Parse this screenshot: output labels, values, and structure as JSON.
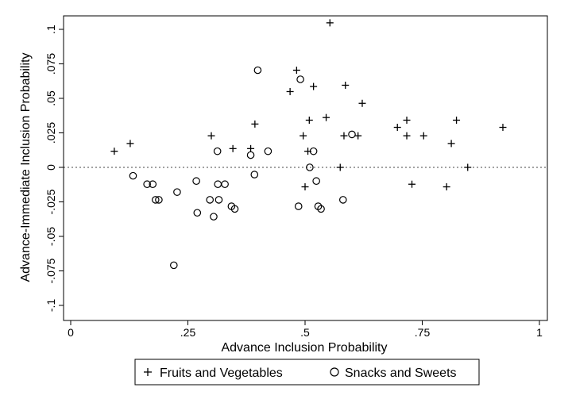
{
  "chart_data": {
    "type": "scatter",
    "xlabel": "Advance Inclusion Probability",
    "ylabel": "Advance-Immediate Inclusion Probability",
    "xlim": [
      0,
      1
    ],
    "ylim": [
      -0.1,
      0.1
    ],
    "x_ticks": [
      {
        "value": 0,
        "label": "0"
      },
      {
        "value": 0.25,
        "label": ".25"
      },
      {
        "value": 0.5,
        "label": ".5"
      },
      {
        "value": 0.75,
        "label": ".75"
      },
      {
        "value": 1,
        "label": "1"
      }
    ],
    "y_ticks": [
      {
        "value": 0.1,
        "label": ".1"
      },
      {
        "value": 0.075,
        "label": ".075"
      },
      {
        "value": 0.05,
        "label": ".05"
      },
      {
        "value": 0.025,
        "label": ".025"
      },
      {
        "value": 0,
        "label": "0"
      },
      {
        "value": -0.025,
        "label": "-.025"
      },
      {
        "value": -0.05,
        "label": "-.05"
      },
      {
        "value": -0.075,
        "label": "-.075"
      },
      {
        "value": -0.1,
        "label": "-.1"
      }
    ],
    "reference_line": {
      "y": 0,
      "style": "dotted"
    },
    "grid": false,
    "legend_position": "bottom",
    "series": [
      {
        "name": "Fruits and Vegetables",
        "marker": "plus",
        "points": [
          {
            "x": 0.093,
            "y": 0.0117
          },
          {
            "x": 0.127,
            "y": 0.0173
          },
          {
            "x": 0.3,
            "y": 0.0229
          },
          {
            "x": 0.346,
            "y": 0.0136
          },
          {
            "x": 0.384,
            "y": 0.0136
          },
          {
            "x": 0.393,
            "y": 0.0314
          },
          {
            "x": 0.468,
            "y": 0.0549
          },
          {
            "x": 0.482,
            "y": 0.0704
          },
          {
            "x": 0.496,
            "y": 0.0229
          },
          {
            "x": 0.5,
            "y": -0.0141
          },
          {
            "x": 0.506,
            "y": 0.0117
          },
          {
            "x": 0.509,
            "y": 0.0342
          },
          {
            "x": 0.518,
            "y": 0.0586
          },
          {
            "x": 0.545,
            "y": 0.0361
          },
          {
            "x": 0.553,
            "y": 0.1047
          },
          {
            "x": 0.575,
            "y": 0.0
          },
          {
            "x": 0.583,
            "y": 0.0229
          },
          {
            "x": 0.586,
            "y": 0.0595
          },
          {
            "x": 0.613,
            "y": 0.0229
          },
          {
            "x": 0.622,
            "y": 0.0464
          },
          {
            "x": 0.697,
            "y": 0.029
          },
          {
            "x": 0.717,
            "y": 0.0342
          },
          {
            "x": 0.717,
            "y": 0.0229
          },
          {
            "x": 0.728,
            "y": -0.0122
          },
          {
            "x": 0.753,
            "y": 0.0229
          },
          {
            "x": 0.802,
            "y": -0.0141
          },
          {
            "x": 0.812,
            "y": 0.0173
          },
          {
            "x": 0.823,
            "y": 0.0342
          },
          {
            "x": 0.847,
            "y": 0.0
          },
          {
            "x": 0.922,
            "y": 0.029
          }
        ]
      },
      {
        "name": "Snacks and Sweets",
        "marker": "circle",
        "points": [
          {
            "x": 0.133,
            "y": -0.0061
          },
          {
            "x": 0.163,
            "y": -0.0122
          },
          {
            "x": 0.175,
            "y": -0.0122
          },
          {
            "x": 0.181,
            "y": -0.0235
          },
          {
            "x": 0.188,
            "y": -0.0235
          },
          {
            "x": 0.22,
            "y": -0.0709
          },
          {
            "x": 0.227,
            "y": -0.0179
          },
          {
            "x": 0.268,
            "y": -0.0099
          },
          {
            "x": 0.27,
            "y": -0.0329
          },
          {
            "x": 0.297,
            "y": -0.0235
          },
          {
            "x": 0.305,
            "y": -0.0357
          },
          {
            "x": 0.313,
            "y": 0.0117
          },
          {
            "x": 0.314,
            "y": -0.0122
          },
          {
            "x": 0.316,
            "y": -0.0235
          },
          {
            "x": 0.329,
            "y": -0.0122
          },
          {
            "x": 0.343,
            "y": -0.0282
          },
          {
            "x": 0.35,
            "y": -0.0301
          },
          {
            "x": 0.384,
            "y": 0.0089
          },
          {
            "x": 0.392,
            "y": -0.0052
          },
          {
            "x": 0.399,
            "y": 0.0704
          },
          {
            "x": 0.421,
            "y": 0.0117
          },
          {
            "x": 0.486,
            "y": -0.0282
          },
          {
            "x": 0.49,
            "y": 0.0638
          },
          {
            "x": 0.51,
            "y": 0.0
          },
          {
            "x": 0.518,
            "y": 0.0117
          },
          {
            "x": 0.524,
            "y": -0.0099
          },
          {
            "x": 0.528,
            "y": -0.0282
          },
          {
            "x": 0.534,
            "y": -0.0301
          },
          {
            "x": 0.581,
            "y": -0.0235
          },
          {
            "x": 0.6,
            "y": 0.0239
          }
        ]
      }
    ]
  }
}
